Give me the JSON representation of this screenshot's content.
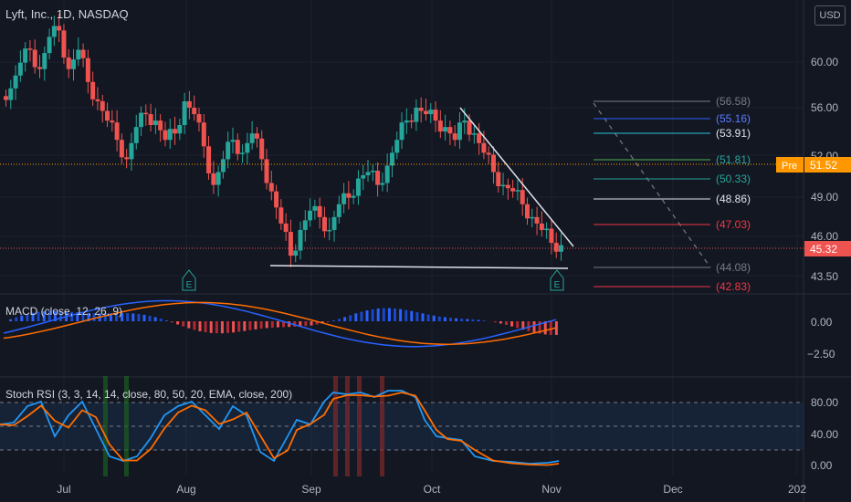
{
  "header": {
    "title": "Lyft, Inc., 1D, NASDAQ"
  },
  "currency": "USD",
  "colors": {
    "bg": "#131722",
    "up": "#26a69a",
    "down": "#ef5350",
    "grid": "#1e222d",
    "text": "#b2b5be",
    "macd": "#2962ff",
    "signal": "#ff6d00",
    "stochK": "#2196f3",
    "stochD": "#ff6d00"
  },
  "price_axis": {
    "labels": [
      "60.00",
      "56.00",
      "52.00",
      "49.00",
      "46.00",
      "43.50"
    ],
    "current": "45.32",
    "pre_label": "Pre",
    "pre_price": "51.52"
  },
  "time_axis": {
    "labels": [
      "Jul",
      "Aug",
      "Sep",
      "Oct",
      "Nov",
      "Dec",
      "202"
    ]
  },
  "fib_levels": [
    "(56.58)",
    "(55.16)",
    "(53.91)",
    "(51.81)",
    "(50.33)",
    "(48.86)",
    "(47.03)",
    "(44.08)",
    "(42.83)"
  ],
  "earnings_markers": [
    "E",
    "E"
  ],
  "macd": {
    "label": "MACD (close, 12, 26, 9)",
    "axis": [
      "0.00",
      "−2.50"
    ]
  },
  "stoch_rsi": {
    "label": "Stoch RSI (3, 3, 14, 14, close, 80, 50, 20, EMA, close, 200)",
    "axis": [
      "80.00",
      "40.00",
      "0.00"
    ]
  },
  "chart_data": {
    "type": "candlestick",
    "title": "Lyft, Inc., 1D, NASDAQ",
    "approx_close_path": [
      57.5,
      59.5,
      60.5,
      59.0,
      61.5,
      62.0,
      59.0,
      60.5,
      58.0,
      56.5,
      55.0,
      53.5,
      52.0,
      54.5,
      55.5,
      55.0,
      53.5,
      54.0,
      56.5,
      55.5,
      53.0,
      50.0,
      52.0,
      53.5,
      52.5,
      54.0,
      52.0,
      49.5,
      47.0,
      44.5,
      46.5,
      48.0,
      47.5,
      46.5,
      48.5,
      49.0,
      50.5,
      51.0,
      50.0,
      51.5,
      53.5,
      55.0,
      56.0,
      55.5,
      55.0,
      54.5,
      53.5,
      55.0,
      54.0,
      52.5,
      51.0,
      50.0,
      49.5,
      48.5,
      47.5,
      46.5,
      45.5,
      45.32
    ],
    "current_price": 45.32,
    "premarket_price": 51.52
  }
}
